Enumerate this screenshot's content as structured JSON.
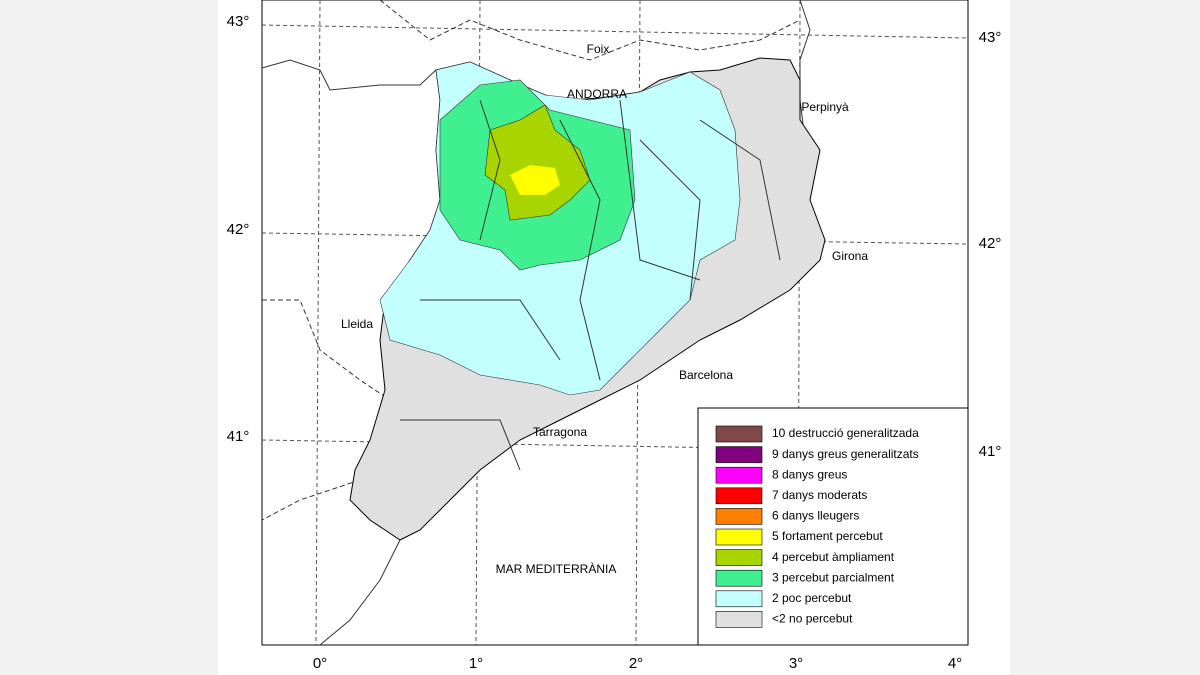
{
  "axes": {
    "x_labels": [
      "0°",
      "1°",
      "2°",
      "3°",
      "4°"
    ],
    "y_labels_left": [
      "43°",
      "42°",
      "41°"
    ],
    "y_labels_right": [
      "43°",
      "42°",
      "41°"
    ]
  },
  "places": [
    "Foix",
    "ANDORRA",
    "Perpinyà",
    "Girona",
    "Lleida",
    "Barcelona",
    "Tarragona",
    "MAR MEDITERRÀNIA"
  ],
  "legend": [
    {
      "label": "10 destrucció generalitzada",
      "color": "#804848"
    },
    {
      "label": "9 danys greus generalitzats",
      "color": "#800080"
    },
    {
      "label": "8 danys greus",
      "color": "#ff00ff"
    },
    {
      "label": "7 danys moderats",
      "color": "#ff0000"
    },
    {
      "label": "6 danys lleugers",
      "color": "#ff8000"
    },
    {
      "label": "5 fortament percebut",
      "color": "#ffff00"
    },
    {
      "label": "4 percebut àmpliament",
      "color": "#a8d400"
    },
    {
      "label": "3 percebut parcialment",
      "color": "#40f090"
    },
    {
      "label": "2 poc percebut",
      "color": "#c4ffff"
    },
    {
      "label": "<2 no percebut",
      "color": "#e0e0e0"
    }
  ]
}
